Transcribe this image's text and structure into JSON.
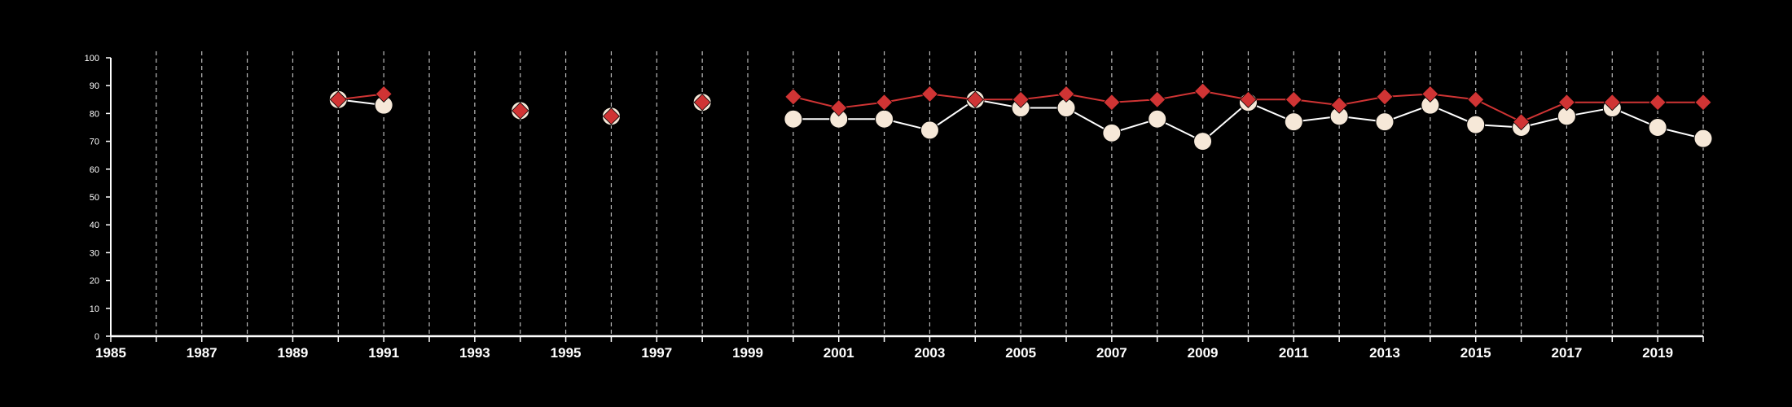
{
  "chart_data": {
    "type": "line",
    "title": "",
    "xlabel": "",
    "ylabel": "",
    "xlim": [
      1985,
      2020
    ],
    "ylim": [
      0,
      100
    ],
    "x_ticks": [
      1985,
      1987,
      1989,
      1991,
      1993,
      1995,
      1997,
      1999,
      2001,
      2003,
      2005,
      2007,
      2009,
      2011,
      2013,
      2015,
      2017,
      2019
    ],
    "y_ticks": [
      0,
      10,
      20,
      30,
      40,
      50,
      60,
      70,
      80,
      90,
      100
    ],
    "grid": "vertical-dashed",
    "legend": "none",
    "colors": {
      "background": "#000000",
      "axis": "#ffffff",
      "grid": "#bbbbbb",
      "series_diamond": "#d03434",
      "series_circle": "#f6e8d8"
    },
    "series": [
      {
        "marker": "diamond",
        "color": "#d03434",
        "points": [
          [
            1990,
            85
          ],
          [
            1991,
            87
          ],
          [
            1994,
            81
          ],
          [
            1996,
            79
          ],
          [
            1998,
            84
          ],
          [
            2000,
            86
          ],
          [
            2001,
            82
          ],
          [
            2002,
            84
          ],
          [
            2003,
            87
          ],
          [
            2004,
            85
          ],
          [
            2005,
            85
          ],
          [
            2006,
            87
          ],
          [
            2007,
            84
          ],
          [
            2008,
            85
          ],
          [
            2009,
            88
          ],
          [
            2010,
            85
          ],
          [
            2011,
            85
          ],
          [
            2012,
            83
          ],
          [
            2013,
            86
          ],
          [
            2014,
            87
          ],
          [
            2015,
            85
          ],
          [
            2016,
            77
          ],
          [
            2017,
            84
          ],
          [
            2018,
            84
          ],
          [
            2019,
            84
          ],
          [
            2020,
            84
          ]
        ]
      },
      {
        "marker": "circle",
        "color": "#f6e8d8",
        "points": [
          [
            1990,
            85
          ],
          [
            1991,
            83
          ],
          [
            1994,
            81
          ],
          [
            1996,
            79
          ],
          [
            1998,
            84
          ],
          [
            2000,
            78
          ],
          [
            2001,
            78
          ],
          [
            2002,
            78
          ],
          [
            2003,
            74
          ],
          [
            2004,
            85
          ],
          [
            2005,
            82
          ],
          [
            2006,
            82
          ],
          [
            2007,
            73
          ],
          [
            2008,
            78
          ],
          [
            2009,
            70
          ],
          [
            2010,
            84
          ],
          [
            2011,
            77
          ],
          [
            2012,
            79
          ],
          [
            2013,
            77
          ],
          [
            2014,
            83
          ],
          [
            2015,
            76
          ],
          [
            2016,
            75
          ],
          [
            2017,
            79
          ],
          [
            2018,
            82
          ],
          [
            2019,
            75
          ],
          [
            2020,
            71
          ]
        ]
      }
    ]
  }
}
